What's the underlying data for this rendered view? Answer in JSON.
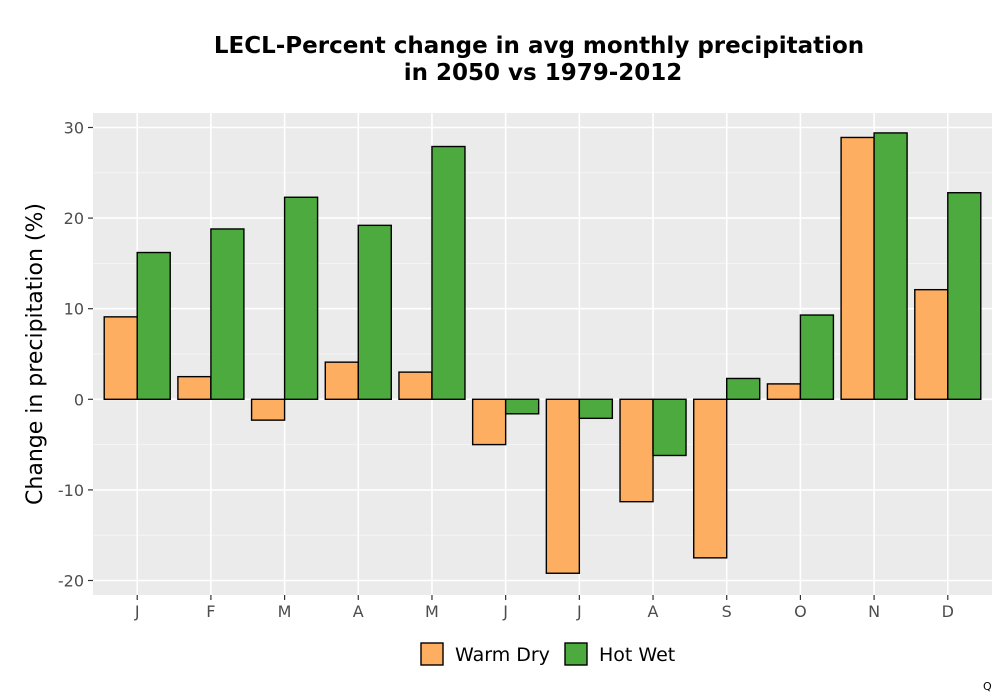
{
  "chart_data": {
    "type": "bar",
    "title": [
      "LECL-Percent change in avg monthly precipitation",
      "in 2050 vs 1979-2012"
    ],
    "ylabel": "Change in precipitation (%)",
    "xlabel": "",
    "categories": [
      "J",
      "F",
      "M",
      "A",
      "M",
      "J",
      "J",
      "A",
      "S",
      "O",
      "N",
      "D"
    ],
    "series": [
      {
        "name": "Warm Dry",
        "color": "#fdae61",
        "values": [
          9.1,
          2.5,
          -2.3,
          4.1,
          3.0,
          -5.0,
          -19.2,
          -11.3,
          -17.5,
          1.7,
          28.9,
          12.1
        ]
      },
      {
        "name": "Hot Wet",
        "color": "#4daa3f",
        "values": [
          16.2,
          18.8,
          22.3,
          19.2,
          27.9,
          -1.6,
          -2.1,
          -6.2,
          2.3,
          9.3,
          29.4,
          22.8
        ]
      }
    ],
    "yticks": [
      -20,
      -10,
      0,
      10,
      20,
      30
    ],
    "ylim": [
      -21.6,
      31.6
    ],
    "grid": true,
    "legend_position": "bottom"
  },
  "corner_mark": "Q"
}
